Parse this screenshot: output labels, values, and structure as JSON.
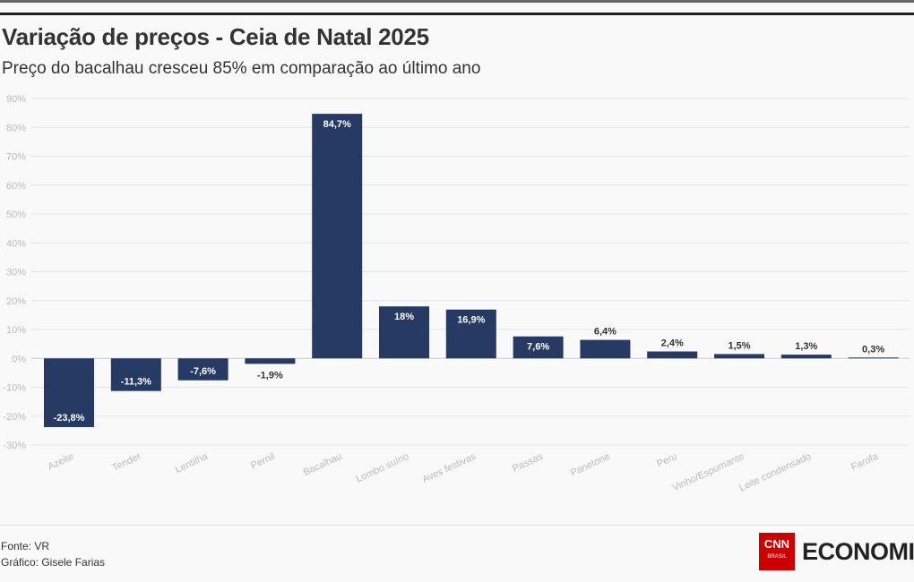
{
  "title": "Variação de preços - Ceia de Natal 2025",
  "subtitle": "Preço do bacalhau cresceu 85% em comparação ao último ano",
  "footer": {
    "source": "Fonte: VR",
    "credit": "Gráfico: Gisele Farias",
    "logo_cnn": "CNN",
    "logo_brasil": "BRASIL",
    "logo_text": "ECONOMIA"
  },
  "colors": {
    "bar": "#273a63",
    "grid": "#e6e6e6"
  },
  "chart_data": {
    "type": "bar",
    "categories": [
      "Azeite",
      "Tender",
      "Lentilha",
      "Pernil",
      "Bacalhau",
      "Lombo suíno",
      "Aves festivas",
      "Passas",
      "Panetone",
      "Peru",
      "Vinho/Espumante",
      "Leite condensado",
      "Farofa"
    ],
    "values": [
      -23.8,
      -11.3,
      -7.6,
      -1.9,
      84.7,
      18,
      16.9,
      7.6,
      6.4,
      2.4,
      1.5,
      1.3,
      0.3
    ],
    "labels": [
      "-23,8%",
      "-11,3%",
      "-7,6%",
      "-1,9%",
      "84,7%",
      "18%",
      "16,9%",
      "7,6%",
      "6,4%",
      "2,4%",
      "1,5%",
      "1,3%",
      "0,3%"
    ],
    "yticks": [
      "90%",
      "80%",
      "70%",
      "60%",
      "50%",
      "40%",
      "30%",
      "20%",
      "10%",
      "0%",
      "-10%",
      "-20%",
      "-30%"
    ],
    "ylim": [
      -30,
      90
    ],
    "grid": true
  }
}
